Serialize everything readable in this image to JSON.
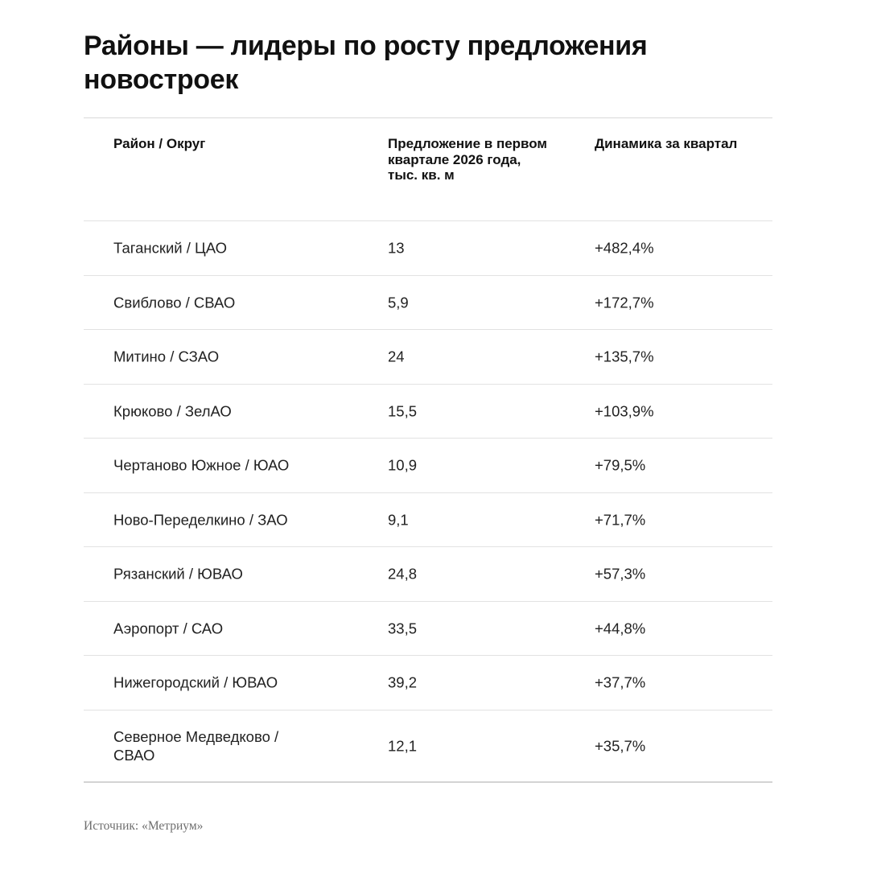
{
  "title": "Районы — лидеры по росту предложения новостроек",
  "table": {
    "headers": [
      "Район / Округ",
      "Предложение в первом квартале 2026 года, тыс. кв. м",
      "Динамика за квартал"
    ],
    "rows": [
      {
        "district": "Таганский / ЦАО",
        "supply": "13",
        "change": "+482,4%"
      },
      {
        "district": "Свиблово / СВАО",
        "supply": "5,9",
        "change": "+172,7%"
      },
      {
        "district": "Митино / СЗАО",
        "supply": "24",
        "change": "+135,7%"
      },
      {
        "district": "Крюково / ЗелАО",
        "supply": "15,5",
        "change": "+103,9%"
      },
      {
        "district": "Чертаново Южное / ЮАО",
        "supply": "10,9",
        "change": "+79,5%"
      },
      {
        "district": "Ново-Переделкино / ЗАО",
        "supply": "9,1",
        "change": "+71,7%"
      },
      {
        "district": "Рязанский / ЮВАО",
        "supply": "24,8",
        "change": "+57,3%"
      },
      {
        "district": "Аэропорт / САО",
        "supply": "33,5",
        "change": "+44,8%"
      },
      {
        "district": "Нижегородский / ЮВАО",
        "supply": "39,2",
        "change": "+37,7%"
      },
      {
        "district": "Северное Медведково / СВАО",
        "supply": "12,1",
        "change": "+35,7%"
      }
    ]
  },
  "source": "Источник: «Метриум»"
}
